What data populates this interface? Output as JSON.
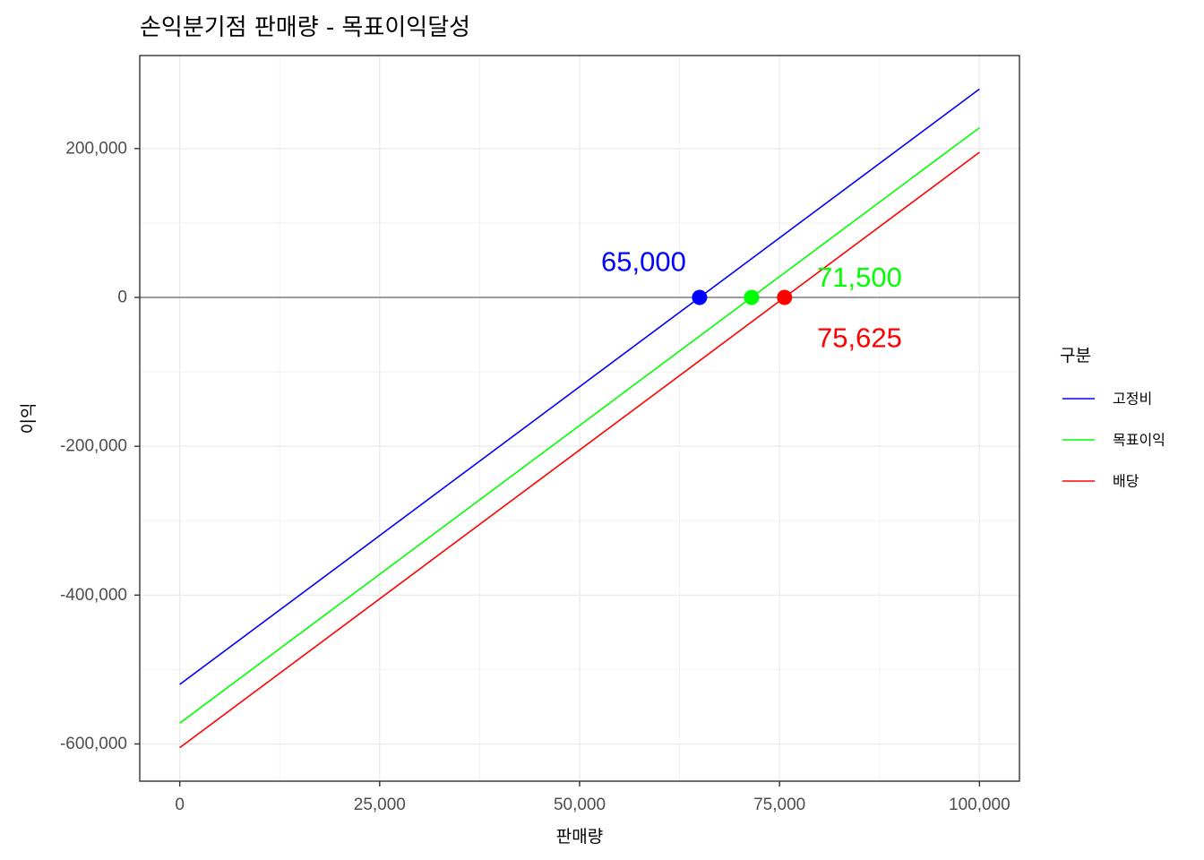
{
  "chart_data": {
    "type": "line",
    "title": "손익분기점 판매량 - 목표이익달성",
    "xlabel": "판매량",
    "ylabel": "이익",
    "xlim": [
      -5000,
      105000
    ],
    "ylim": [
      -650000,
      325000
    ],
    "x_ticks": [
      0,
      25000,
      50000,
      75000,
      100000
    ],
    "x_tick_labels": [
      "0",
      "25,000",
      "50,000",
      "75,000",
      "100,000"
    ],
    "y_ticks": [
      -600000,
      -400000,
      -200000,
      0,
      200000
    ],
    "y_tick_labels": [
      "-600,000",
      "-400,000",
      "-200,000",
      "0",
      "200,000"
    ],
    "grid": true,
    "reference_line_y": 0,
    "legend": {
      "title": "구분",
      "position": "right",
      "entries": [
        {
          "label": "고정비",
          "color": "#0000FF"
        },
        {
          "label": "목표이익",
          "color": "#00FF00"
        },
        {
          "label": "배당",
          "color": "#FF0000"
        }
      ]
    },
    "series": [
      {
        "name": "고정비",
        "color": "#0000FF",
        "x": [
          0,
          100000
        ],
        "y": [
          -520000,
          280000
        ],
        "point": {
          "x": 65000,
          "y": 0,
          "label": "65,000",
          "label_x": 58000,
          "label_y": 48000
        }
      },
      {
        "name": "목표이익",
        "color": "#00FF00",
        "x": [
          0,
          100000
        ],
        "y": [
          -572000,
          228000
        ],
        "point": {
          "x": 71500,
          "y": 0,
          "label": "71,500",
          "label_x": 85000,
          "label_y": 27000
        }
      },
      {
        "name": "배당",
        "color": "#FF0000",
        "x": [
          0,
          100000
        ],
        "y": [
          -605000,
          195000
        ],
        "point": {
          "x": 75625,
          "y": 0,
          "label": "75,625",
          "label_x": 85000,
          "label_y": -54000
        }
      }
    ]
  }
}
